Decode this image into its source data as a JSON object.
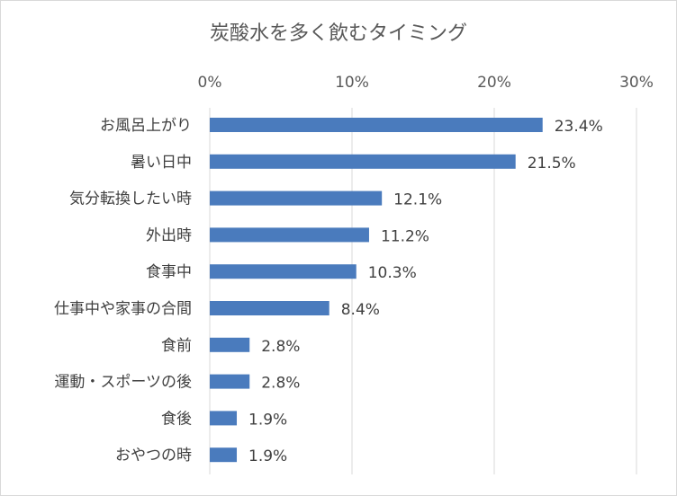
{
  "chart_data": {
    "type": "bar",
    "orientation": "horizontal",
    "title": "炭酸水を多く飲むタイミング",
    "xlim": [
      0,
      30
    ],
    "x_ticks": [
      0,
      10,
      20,
      30
    ],
    "x_tick_labels": [
      "0%",
      "10%",
      "20%",
      "30%"
    ],
    "x_axis_position": "top",
    "grid": true,
    "legend": "none",
    "bar_color": "#4a7bbd",
    "categories": [
      "お風呂上がり",
      "暑い日中",
      "気分転換したい時",
      "外出時",
      "食事中",
      "仕事中や家事の合間",
      "食前",
      "運動・スポーツの後",
      "食後",
      "おやつの時"
    ],
    "values": [
      23.4,
      21.5,
      12.1,
      11.2,
      10.3,
      8.4,
      2.8,
      2.8,
      1.9,
      1.9
    ],
    "value_labels": [
      "23.4%",
      "21.5%",
      "12.1%",
      "11.2%",
      "10.3%",
      "8.4%",
      "2.8%",
      "2.8%",
      "1.9%",
      "1.9%"
    ]
  }
}
